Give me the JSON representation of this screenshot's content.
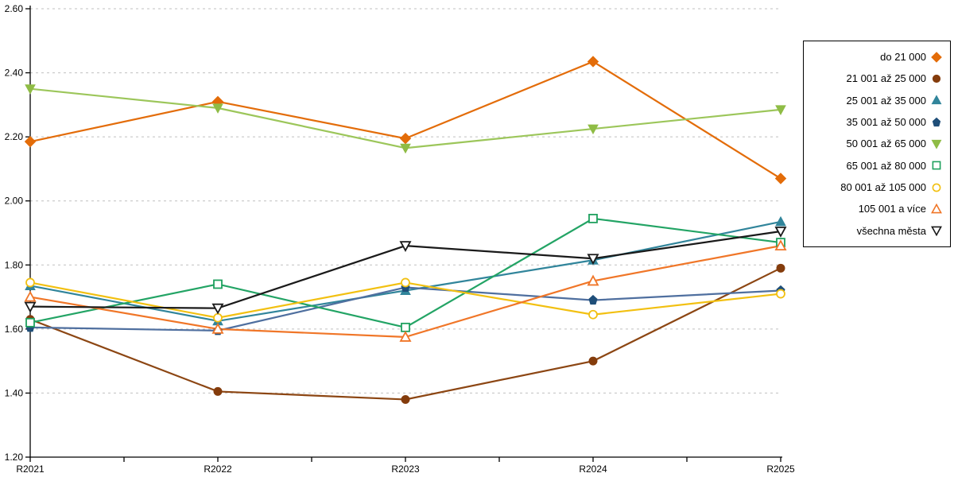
{
  "chart_data": {
    "type": "line",
    "title": "",
    "xlabel": "",
    "ylabel": "",
    "x": [
      "R2021",
      "R2022",
      "R2023",
      "R2024",
      "R2025"
    ],
    "ylim": [
      1.2,
      2.6
    ],
    "y_tick_step": 0.2,
    "y_tick_labels": [
      "1.20",
      "1.40",
      "1.60",
      "1.80",
      "2.00",
      "2.20",
      "2.40",
      "2.60"
    ],
    "grid": "horizontal-dashed",
    "grid_color": "#c0c0c0",
    "axis_color": "#000000",
    "legend_position": "right",
    "series": [
      {
        "name": "do 21 000",
        "marker": "diamond",
        "fill": "solid",
        "line_color": "#e36c09",
        "marker_color": "#e36c09",
        "values": [
          2.185,
          2.31,
          2.195,
          2.435,
          2.07
        ]
      },
      {
        "name": "21 001 až 25 000",
        "marker": "circle",
        "fill": "solid",
        "line_color": "#8c4613",
        "marker_color": "#843c0c",
        "values": [
          1.63,
          1.405,
          1.38,
          1.5,
          1.79
        ]
      },
      {
        "name": "25 001 až 35 000",
        "marker": "triangle-up",
        "fill": "solid",
        "line_color": "#31859b",
        "marker_color": "#31859b",
        "values": [
          1.735,
          1.625,
          1.72,
          1.815,
          1.935
        ]
      },
      {
        "name": "35 001 až 50 000",
        "marker": "pentagon",
        "fill": "solid",
        "line_color": "#4f6f9f",
        "marker_color": "#1f4e79",
        "values": [
          1.605,
          1.595,
          1.73,
          1.69,
          1.72
        ]
      },
      {
        "name": "50 001 až 65 000",
        "marker": "triangle-down",
        "fill": "solid",
        "line_color": "#9cc65a",
        "marker_color": "#8fbc45",
        "values": [
          2.35,
          2.29,
          2.165,
          2.225,
          2.285
        ]
      },
      {
        "name": "65 001 až 80 000",
        "marker": "square",
        "fill": "open",
        "line_color": "#23a465",
        "marker_color": "#1fa05e",
        "values": [
          1.62,
          1.74,
          1.605,
          1.945,
          1.87
        ]
      },
      {
        "name": "80 001 až 105 000",
        "marker": "circle",
        "fill": "open",
        "line_color": "#f2c011",
        "marker_color": "#f2c011",
        "values": [
          1.745,
          1.635,
          1.745,
          1.645,
          1.71
        ]
      },
      {
        "name": "105 001 a více",
        "marker": "triangle-up",
        "fill": "open",
        "line_color": "#f07628",
        "marker_color": "#f07628",
        "values": [
          1.7,
          1.6,
          1.575,
          1.75,
          1.86
        ]
      },
      {
        "name": "všechna města",
        "marker": "triangle-down",
        "fill": "open",
        "line_color": "#1a1a1a",
        "marker_color": "#1a1a1a",
        "values": [
          1.67,
          1.665,
          1.86,
          1.82,
          1.905
        ]
      }
    ]
  }
}
